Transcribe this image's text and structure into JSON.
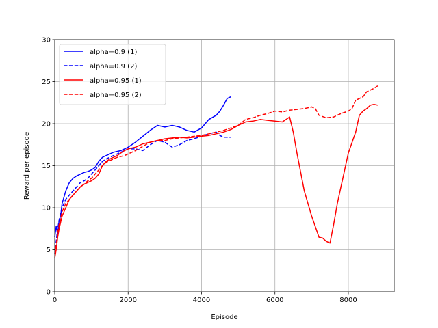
{
  "chart_data": {
    "type": "line",
    "title": "",
    "xlabel": "Episode",
    "ylabel": "Reward per episode",
    "xlim": [
      0,
      9250
    ],
    "ylim": [
      0,
      30
    ],
    "xticks": [
      0,
      2000,
      4000,
      6000,
      8000
    ],
    "yticks": [
      0,
      5,
      10,
      15,
      20,
      25,
      30
    ],
    "grid": true,
    "legend_position": "top-left",
    "series": [
      {
        "name": "alpha=0.9 (1)",
        "color": "#0000ff",
        "dash": "solid",
        "x": [
          0,
          40,
          80,
          120,
          160,
          200,
          300,
          400,
          500,
          600,
          700,
          800,
          900,
          1000,
          1100,
          1200,
          1300,
          1400,
          1500,
          1600,
          1700,
          1800,
          1900,
          2000,
          2200,
          2400,
          2600,
          2800,
          3000,
          3200,
          3400,
          3600,
          3800,
          4000,
          4200,
          4400,
          4500,
          4600,
          4700,
          4800
        ],
        "y": [
          6.5,
          7.8,
          6.8,
          8.5,
          9.0,
          10.5,
          12.0,
          13.0,
          13.5,
          13.8,
          14.0,
          14.2,
          14.3,
          14.5,
          14.8,
          15.5,
          16.0,
          16.2,
          16.4,
          16.6,
          16.7,
          16.8,
          17.0,
          17.2,
          17.8,
          18.5,
          19.2,
          19.8,
          19.6,
          19.8,
          19.6,
          19.2,
          19.0,
          19.5,
          20.5,
          21.0,
          21.5,
          22.2,
          23.0,
          23.2
        ]
      },
      {
        "name": "alpha=0.9 (2)",
        "color": "#0000ff",
        "dash": "dashed",
        "x": [
          0,
          40,
          80,
          120,
          200,
          300,
          400,
          500,
          600,
          700,
          800,
          900,
          1000,
          1100,
          1200,
          1300,
          1400,
          1500,
          1600,
          1700,
          1800,
          1900,
          2000,
          2200,
          2400,
          2600,
          2800,
          3000,
          3200,
          3400,
          3600,
          3800,
          4000,
          4200,
          4400,
          4500,
          4600,
          4800
        ],
        "y": [
          4.5,
          6.0,
          7.5,
          8.5,
          10.0,
          11.0,
          11.5,
          12.0,
          12.5,
          13.0,
          13.2,
          13.5,
          14.0,
          14.5,
          15.0,
          15.5,
          15.8,
          16.0,
          16.2,
          16.4,
          16.6,
          16.8,
          17.0,
          17.0,
          16.8,
          17.5,
          18.0,
          17.8,
          17.2,
          17.5,
          18.0,
          18.2,
          18.5,
          18.8,
          19.0,
          18.6,
          18.4,
          18.4
        ]
      },
      {
        "name": "alpha=0.95 (1)",
        "color": "#ff0000",
        "dash": "solid",
        "x": [
          0,
          40,
          80,
          120,
          200,
          300,
          400,
          500,
          600,
          700,
          800,
          900,
          1000,
          1100,
          1200,
          1300,
          1400,
          1500,
          1600,
          1700,
          1800,
          1900,
          2000,
          2200,
          2400,
          2600,
          2800,
          3000,
          3200,
          3400,
          3600,
          3800,
          4000,
          4200,
          4400,
          4600,
          4800,
          5000,
          5200,
          5400,
          5600,
          5800,
          6000,
          6200,
          6400,
          6500,
          6600,
          6800,
          7000,
          7200,
          7300,
          7400,
          7500,
          7600,
          7700,
          7800,
          8000,
          8200,
          8300,
          8400,
          8500,
          8600,
          8700,
          8800
        ],
        "y": [
          4.0,
          5.0,
          6.5,
          7.5,
          9.0,
          10.0,
          11.0,
          11.5,
          12.0,
          12.5,
          12.8,
          13.0,
          13.2,
          13.5,
          14.0,
          15.0,
          15.5,
          15.8,
          16.0,
          16.2,
          16.5,
          16.8,
          17.0,
          17.2,
          17.6,
          17.8,
          18.0,
          18.2,
          18.3,
          18.4,
          18.3,
          18.4,
          18.5,
          18.6,
          18.8,
          19.0,
          19.3,
          19.8,
          20.2,
          20.3,
          20.5,
          20.4,
          20.3,
          20.2,
          20.8,
          19.0,
          16.5,
          12.0,
          9.0,
          6.5,
          6.4,
          6.0,
          5.8,
          8.0,
          10.5,
          12.5,
          16.5,
          19.0,
          21.0,
          21.5,
          21.8,
          22.2,
          22.3,
          22.2
        ]
      },
      {
        "name": "alpha=0.95 (2)",
        "color": "#ff0000",
        "dash": "dashed",
        "x": [
          0,
          40,
          80,
          120,
          200,
          300,
          400,
          500,
          600,
          700,
          800,
          900,
          1000,
          1100,
          1200,
          1300,
          1400,
          1500,
          1600,
          1700,
          1800,
          1900,
          2000,
          2200,
          2400,
          2600,
          2800,
          3000,
          3200,
          3400,
          3600,
          3800,
          4000,
          4200,
          4400,
          4600,
          4800,
          5000,
          5200,
          5400,
          5600,
          5800,
          6000,
          6200,
          6400,
          6600,
          6800,
          7000,
          7100,
          7200,
          7400,
          7600,
          7800,
          8000,
          8100,
          8200,
          8400,
          8500,
          8600,
          8700,
          8800
        ],
        "y": [
          4.5,
          5.5,
          7.0,
          8.0,
          9.5,
          10.5,
          11.0,
          11.5,
          12.0,
          12.5,
          12.8,
          13.2,
          13.5,
          14.0,
          14.5,
          15.0,
          15.4,
          15.6,
          15.8,
          16.0,
          16.1,
          16.2,
          16.4,
          16.8,
          17.3,
          17.8,
          18.0,
          18.0,
          18.2,
          18.3,
          18.4,
          18.5,
          18.6,
          18.8,
          19.0,
          19.2,
          19.5,
          19.8,
          20.5,
          20.7,
          21.0,
          21.2,
          21.5,
          21.4,
          21.6,
          21.7,
          21.8,
          22.0,
          21.8,
          21.0,
          20.7,
          20.8,
          21.2,
          21.5,
          21.8,
          22.8,
          23.2,
          23.8,
          24.0,
          24.2,
          24.5
        ]
      }
    ]
  }
}
